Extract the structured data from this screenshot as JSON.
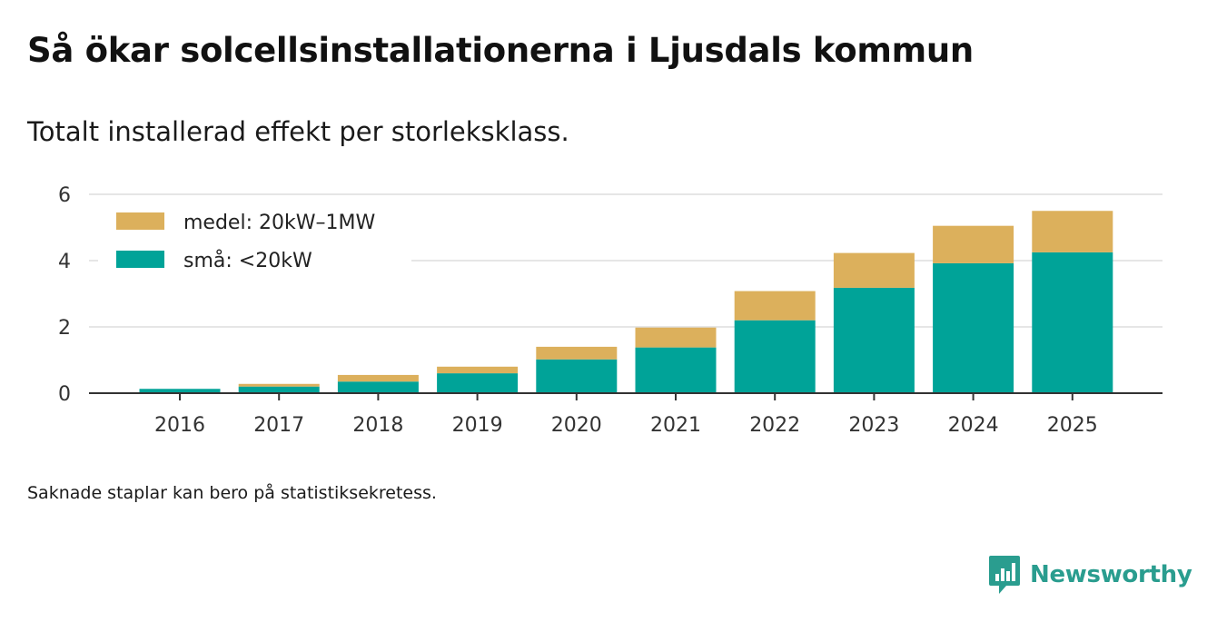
{
  "title": "Så ökar solcellsinstallationerna i Ljusdals kommun",
  "subtitle": "Totalt installerad effekt per storleksklass.",
  "footnote": "Saknade staplar kan bero på statistiksekretess.",
  "brand": {
    "name": "Newsworthy",
    "icon": "newsworthy-logo-icon",
    "color": "#2a9d8f"
  },
  "chart_data": {
    "type": "bar",
    "stacked": true,
    "title": "Så ökar solcellsinstallationerna i Ljusdals kommun",
    "subtitle": "Totalt installerad effekt per storleksklass.",
    "xlabel": "",
    "ylabel": "",
    "categories": [
      "2016",
      "2017",
      "2018",
      "2019",
      "2020",
      "2021",
      "2022",
      "2023",
      "2024",
      "2025"
    ],
    "ylim": [
      0,
      6
    ],
    "yticks": [
      0,
      2,
      4,
      6
    ],
    "grid": true,
    "legend_position": "top-left",
    "series": [
      {
        "name": "små: <20kW",
        "color": "#00a398",
        "values": [
          0.13,
          0.2,
          0.35,
          0.6,
          1.02,
          1.38,
          2.2,
          3.18,
          3.92,
          4.25
        ]
      },
      {
        "name": "medel: 20kW–1MW",
        "color": "#dcb05c",
        "values": [
          0.0,
          0.08,
          0.2,
          0.2,
          0.38,
          0.6,
          0.88,
          1.05,
          1.13,
          1.25
        ]
      }
    ],
    "legend_order": [
      1,
      0
    ]
  }
}
